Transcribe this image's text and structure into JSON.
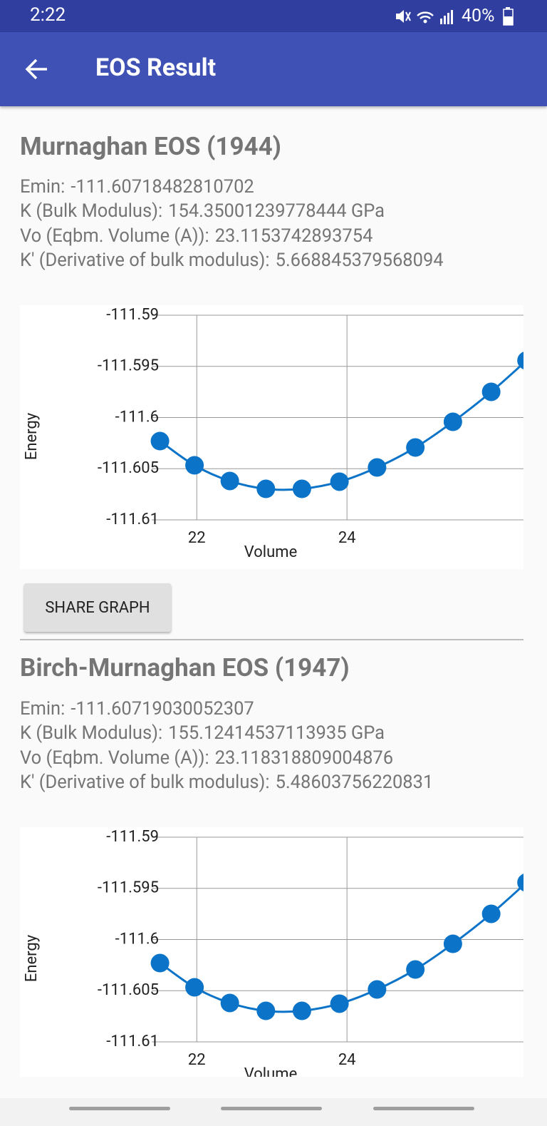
{
  "status_bar": {
    "time": "2:22",
    "battery": "40%"
  },
  "app_bar": {
    "title": "EOS Result"
  },
  "sections": [
    {
      "title": "Murnaghan EOS (1944)",
      "params": [
        {
          "label": "Emin:",
          "value": "-111.60718482810702"
        },
        {
          "label": "K (Bulk Modulus):",
          "value": "154.35001239778444 GPa"
        },
        {
          "label": "Vo (Eqbm. Volume (A)):",
          "value": "23.1153742893754"
        },
        {
          "label": "K' (Derivative of bulk modulus):",
          "value": "5.668845379568094"
        }
      ],
      "button": "SHARE GRAPH"
    },
    {
      "title": "Birch-Murnaghan EOS (1947)",
      "params": [
        {
          "label": "Emin:",
          "value": "-111.60719030052307"
        },
        {
          "label": "K (Bulk Modulus):",
          "value": "155.12414537113935 GPa"
        },
        {
          "label": "Vo (Eqbm. Volume (A)):",
          "value": "23.118318809004876"
        },
        {
          "label": "K' (Derivative of bulk modulus):",
          "value": "5.48603756220831"
        }
      ]
    }
  ],
  "chart_data": [
    {
      "type": "line",
      "x_label": "Volume",
      "y_label": "Energy",
      "markers": true,
      "grid": true,
      "x": [
        21.51,
        21.97,
        22.44,
        22.92,
        23.4,
        23.9,
        24.4,
        24.91,
        25.41,
        25.92,
        26.39
      ],
      "series": [
        {
          "color": "#0b74c8",
          "values": [
            -111.6023,
            -111.60467,
            -111.6062,
            -111.60697,
            -111.60697,
            -111.60627,
            -111.60488,
            -111.60293,
            -111.60042,
            -111.59749,
            -111.59443
          ]
        }
      ],
      "xlim": [
        21.4,
        26.35
      ],
      "ylim": [
        -111.61,
        -111.59
      ],
      "xticks": [
        22,
        24
      ],
      "yticks": [
        -111.61,
        -111.605,
        -111.6,
        -111.595,
        -111.59
      ]
    },
    {
      "type": "line",
      "x_label": "Volume",
      "y_label": "Energy",
      "markers": true,
      "grid": true,
      "x": [
        21.51,
        21.97,
        22.44,
        22.92,
        23.4,
        23.9,
        24.4,
        24.91,
        25.41,
        25.92,
        26.39
      ],
      "series": [
        {
          "color": "#0b74c8",
          "values": [
            -111.6023,
            -111.60467,
            -111.6062,
            -111.60697,
            -111.60697,
            -111.60627,
            -111.60488,
            -111.60293,
            -111.60042,
            -111.59749,
            -111.59443
          ]
        }
      ],
      "xlim": [
        21.4,
        26.35
      ],
      "ylim": [
        -111.61,
        -111.59
      ],
      "xticks": [
        22,
        24
      ],
      "yticks": [
        -111.61,
        -111.605,
        -111.6,
        -111.595,
        -111.59
      ]
    }
  ]
}
